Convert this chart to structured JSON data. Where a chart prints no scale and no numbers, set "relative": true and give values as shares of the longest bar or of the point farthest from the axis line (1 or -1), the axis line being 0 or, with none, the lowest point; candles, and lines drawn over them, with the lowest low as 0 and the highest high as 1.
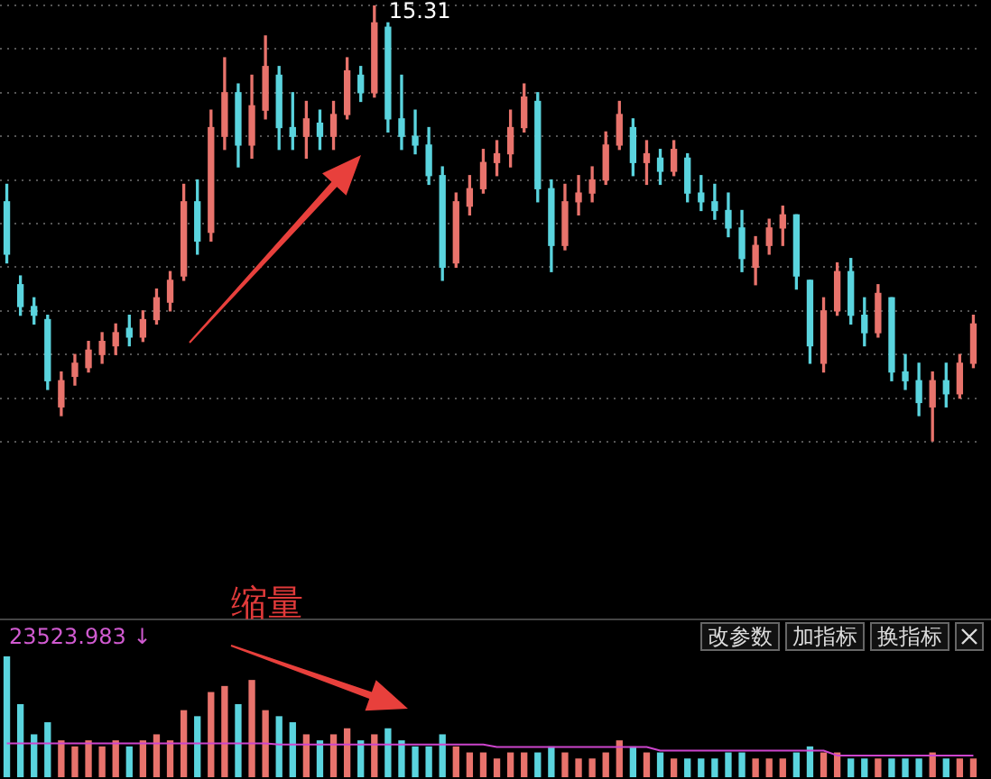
{
  "chart_data": [
    {
      "type": "candlestick",
      "relative": true,
      "grid": "y",
      "categories": [
        null,
        null,
        null,
        null,
        null,
        null,
        null,
        null,
        null,
        null,
        null,
        null,
        null,
        null,
        null,
        null,
        null,
        null,
        null,
        null,
        null,
        null,
        null,
        null,
        null,
        null,
        null,
        null,
        null,
        null,
        null,
        null,
        null,
        null,
        null,
        null,
        null,
        null,
        null,
        null,
        null,
        null,
        null,
        null,
        null,
        null,
        null,
        null,
        null,
        null,
        null,
        null,
        null,
        null,
        null,
        null,
        null,
        null,
        null,
        null,
        null,
        null,
        null,
        null,
        null,
        null,
        null,
        null,
        null,
        null,
        null,
        null
      ],
      "ohlc": [
        [
          0.55,
          0.59,
          0.41,
          0.43
        ],
        [
          0.36,
          0.38,
          0.29,
          0.31
        ],
        [
          0.31,
          0.33,
          0.27,
          0.29
        ],
        [
          0.28,
          0.29,
          0.12,
          0.14
        ],
        [
          0.08,
          0.16,
          0.06,
          0.14
        ],
        [
          0.15,
          0.2,
          0.13,
          0.18
        ],
        [
          0.17,
          0.23,
          0.16,
          0.21
        ],
        [
          0.2,
          0.25,
          0.18,
          0.23
        ],
        [
          0.22,
          0.27,
          0.2,
          0.25
        ],
        [
          0.26,
          0.29,
          0.22,
          0.24
        ],
        [
          0.24,
          0.3,
          0.23,
          0.28
        ],
        [
          0.28,
          0.35,
          0.27,
          0.33
        ],
        [
          0.32,
          0.39,
          0.3,
          0.37
        ],
        [
          0.38,
          0.59,
          0.37,
          0.55
        ],
        [
          0.55,
          0.6,
          0.43,
          0.46
        ],
        [
          0.48,
          0.76,
          0.46,
          0.72
        ],
        [
          0.7,
          0.88,
          0.67,
          0.8
        ],
        [
          0.8,
          0.82,
          0.63,
          0.68
        ],
        [
          0.68,
          0.84,
          0.65,
          0.77
        ],
        [
          0.76,
          0.93,
          0.74,
          0.86
        ],
        [
          0.84,
          0.86,
          0.67,
          0.72
        ],
        [
          0.72,
          0.8,
          0.67,
          0.7
        ],
        [
          0.7,
          0.78,
          0.65,
          0.74
        ],
        [
          0.73,
          0.76,
          0.67,
          0.7
        ],
        [
          0.7,
          0.78,
          0.67,
          0.75
        ],
        [
          0.75,
          0.88,
          0.74,
          0.85
        ],
        [
          0.84,
          0.86,
          0.78,
          0.8
        ],
        [
          0.8,
          1,
          0.79,
          0.96
        ],
        [
          0.95,
          0.96,
          0.71,
          0.74
        ],
        [
          0.74,
          0.84,
          0.67,
          0.7
        ],
        [
          0.7,
          0.76,
          0.66,
          0.68
        ],
        [
          0.68,
          0.72,
          0.59,
          0.61
        ],
        [
          0.61,
          0.63,
          0.37,
          0.4
        ],
        [
          0.41,
          0.57,
          0.4,
          0.55
        ],
        [
          0.54,
          0.61,
          0.52,
          0.58
        ],
        [
          0.58,
          0.67,
          0.57,
          0.64
        ],
        [
          0.64,
          0.69,
          0.61,
          0.66
        ],
        [
          0.66,
          0.76,
          0.63,
          0.72
        ],
        [
          0.72,
          0.82,
          0.71,
          0.79
        ],
        [
          0.78,
          0.8,
          0.55,
          0.58
        ],
        [
          0.58,
          0.6,
          0.39,
          0.45
        ],
        [
          0.45,
          0.59,
          0.44,
          0.55
        ],
        [
          0.55,
          0.61,
          0.52,
          0.57
        ],
        [
          0.57,
          0.63,
          0.55,
          0.6
        ],
        [
          0.6,
          0.71,
          0.59,
          0.68
        ],
        [
          0.68,
          0.78,
          0.67,
          0.75
        ],
        [
          0.72,
          0.74,
          0.61,
          0.64
        ],
        [
          0.64,
          0.69,
          0.59,
          0.66
        ],
        [
          0.65,
          0.67,
          0.59,
          0.62
        ],
        [
          0.62,
          0.69,
          0.61,
          0.67
        ],
        [
          0.65,
          0.66,
          0.55,
          0.57
        ],
        [
          0.57,
          0.61,
          0.53,
          0.55
        ],
        [
          0.55,
          0.59,
          0.51,
          0.53
        ],
        [
          0.53,
          0.57,
          0.47,
          0.49
        ],
        [
          0.49,
          0.53,
          0.39,
          0.42
        ],
        [
          0.4,
          0.47,
          0.36,
          0.45
        ],
        [
          0.45,
          0.51,
          0.43,
          0.49
        ],
        [
          0.49,
          0.54,
          0.45,
          0.52
        ],
        [
          0.52,
          0.52,
          0.35,
          0.38
        ],
        [
          0.37,
          0.37,
          0.18,
          0.22
        ],
        [
          0.18,
          0.33,
          0.16,
          0.3
        ],
        [
          0.3,
          0.41,
          0.29,
          0.39
        ],
        [
          0.39,
          0.42,
          0.27,
          0.29
        ],
        [
          0.29,
          0.33,
          0.22,
          0.25
        ],
        [
          0.25,
          0.36,
          0.24,
          0.34
        ],
        [
          0.33,
          0.33,
          0.14,
          0.16
        ],
        [
          0.16,
          0.2,
          0.12,
          0.14
        ],
        [
          0.14,
          0.18,
          0.06,
          0.09
        ],
        [
          0.08,
          0.16,
          0,
          0.14
        ],
        [
          0.14,
          0.18,
          0.08,
          0.11
        ],
        [
          0.11,
          0.2,
          0.1,
          0.18
        ],
        [
          0.18,
          0.29,
          0.17,
          0.27
        ]
      ],
      "colors": [
        "#5ad4de",
        "#5ad4de",
        "#5ad4de",
        "#5ad4de",
        "#e8736c",
        "#e8736c",
        "#e8736c",
        "#e8736c",
        "#e8736c",
        "#5ad4de",
        "#e8736c",
        "#e8736c",
        "#e8736c",
        "#e8736c",
        "#5ad4de",
        "#e8736c",
        "#e8736c",
        "#5ad4de",
        "#e8736c",
        "#e8736c",
        "#5ad4de",
        "#5ad4de",
        "#e8736c",
        "#5ad4de",
        "#e8736c",
        "#e8736c",
        "#5ad4de",
        "#e8736c",
        "#5ad4de",
        "#5ad4de",
        "#5ad4de",
        "#5ad4de",
        "#5ad4de",
        "#e8736c",
        "#e8736c",
        "#e8736c",
        "#e8736c",
        "#e8736c",
        "#e8736c",
        "#5ad4de",
        "#5ad4de",
        "#e8736c",
        "#e8736c",
        "#e8736c",
        "#e8736c",
        "#e8736c",
        "#5ad4de",
        "#e8736c",
        "#5ad4de",
        "#e8736c",
        "#5ad4de",
        "#5ad4de",
        "#5ad4de",
        "#5ad4de",
        "#5ad4de",
        "#e8736c",
        "#e8736c",
        "#e8736c",
        "#5ad4de",
        "#5ad4de",
        "#e8736c",
        "#e8736c",
        "#5ad4de",
        "#5ad4de",
        "#e8736c",
        "#5ad4de",
        "#5ad4de",
        "#5ad4de",
        "#e8736c",
        "#5ad4de",
        "#e8736c",
        "#e8736c"
      ],
      "annotations": [
        "15.31"
      ]
    },
    {
      "type": "bar",
      "relative": true,
      "categories": [
        null,
        null,
        null,
        null,
        null,
        null,
        null,
        null,
        null,
        null,
        null,
        null,
        null,
        null,
        null,
        null,
        null,
        null,
        null,
        null,
        null,
        null,
        null,
        null,
        null,
        null,
        null,
        null,
        null,
        null,
        null,
        null,
        null,
        null,
        null,
        null,
        null,
        null,
        null,
        null,
        null,
        null,
        null,
        null,
        null,
        null,
        null,
        null,
        null,
        null,
        null,
        null,
        null,
        null,
        null,
        null,
        null,
        null,
        null,
        null,
        null,
        null,
        null,
        null,
        null,
        null,
        null,
        null,
        null,
        null,
        null,
        null
      ],
      "series": [
        {
          "type": "bar",
          "colors": [
            "#5ad4de",
            "#5ad4de",
            "#5ad4de",
            "#5ad4de",
            "#e8736c",
            "#e8736c",
            "#e8736c",
            "#e8736c",
            "#e8736c",
            "#5ad4de",
            "#e8736c",
            "#e8736c",
            "#e8736c",
            "#e8736c",
            "#5ad4de",
            "#e8736c",
            "#e8736c",
            "#5ad4de",
            "#e8736c",
            "#e8736c",
            "#5ad4de",
            "#5ad4de",
            "#e8736c",
            "#5ad4de",
            "#e8736c",
            "#e8736c",
            "#5ad4de",
            "#e8736c",
            "#5ad4de",
            "#5ad4de",
            "#5ad4de",
            "#5ad4de",
            "#5ad4de",
            "#e8736c",
            "#e8736c",
            "#e8736c",
            "#e8736c",
            "#e8736c",
            "#e8736c",
            "#5ad4de",
            "#5ad4de",
            "#e8736c",
            "#e8736c",
            "#e8736c",
            "#e8736c",
            "#e8736c",
            "#5ad4de",
            "#e8736c",
            "#5ad4de",
            "#e8736c",
            "#5ad4de",
            "#5ad4de",
            "#5ad4de",
            "#5ad4de",
            "#5ad4de",
            "#e8736c",
            "#e8736c",
            "#e8736c",
            "#5ad4de",
            "#5ad4de",
            "#e8736c",
            "#e8736c",
            "#5ad4de",
            "#5ad4de",
            "#e8736c",
            "#5ad4de",
            "#5ad4de",
            "#5ad4de",
            "#e8736c",
            "#5ad4de",
            "#e8736c",
            "#e8736c"
          ],
          "values": [
            1,
            0.6,
            0.35,
            0.45,
            0.3,
            0.25,
            0.3,
            0.25,
            0.3,
            0.25,
            0.3,
            0.35,
            0.3,
            0.55,
            0.5,
            0.7,
            0.75,
            0.6,
            0.8,
            0.55,
            0.5,
            0.45,
            0.35,
            0.3,
            0.35,
            0.4,
            0.3,
            0.35,
            0.4,
            0.3,
            0.25,
            0.25,
            0.35,
            0.25,
            0.2,
            0.2,
            0.15,
            0.2,
            0.2,
            0.2,
            0.25,
            0.2,
            0.15,
            0.15,
            0.2,
            0.3,
            0.25,
            0.2,
            0.2,
            0.15,
            0.15,
            0.15,
            0.15,
            0.2,
            0.2,
            0.15,
            0.15,
            0.15,
            0.2,
            0.25,
            0.2,
            0.2,
            0.15,
            0.15,
            0.15,
            0.15,
            0.15,
            0.15,
            0.2,
            0.15,
            0.15,
            0.15
          ]
        },
        {
          "type": "line",
          "color": "#cc44cc",
          "values": [
            0.28,
            0.28,
            0.28,
            0.28,
            0.28,
            0.28,
            0.28,
            0.28,
            0.28,
            0.28,
            0.28,
            0.28,
            0.28,
            0.28,
            0.28,
            0.28,
            0.28,
            0.28,
            0.28,
            0.28,
            0.27,
            0.27,
            0.27,
            0.27,
            0.27,
            0.27,
            0.27,
            0.27,
            0.27,
            0.27,
            0.27,
            0.27,
            0.27,
            0.27,
            0.27,
            0.27,
            0.25,
            0.25,
            0.25,
            0.25,
            0.25,
            0.25,
            0.25,
            0.25,
            0.25,
            0.25,
            0.25,
            0.25,
            0.22,
            0.22,
            0.22,
            0.22,
            0.22,
            0.22,
            0.22,
            0.22,
            0.22,
            0.22,
            0.22,
            0.22,
            0.22,
            0.18,
            0.18,
            0.18,
            0.18,
            0.18,
            0.18,
            0.18,
            0.18,
            0.18,
            0.18,
            0.18
          ]
        }
      ],
      "annotations": [
        "缩量",
        "23523.983 ↓",
        "改参数",
        "加指标",
        "换指标"
      ]
    }
  ]
}
